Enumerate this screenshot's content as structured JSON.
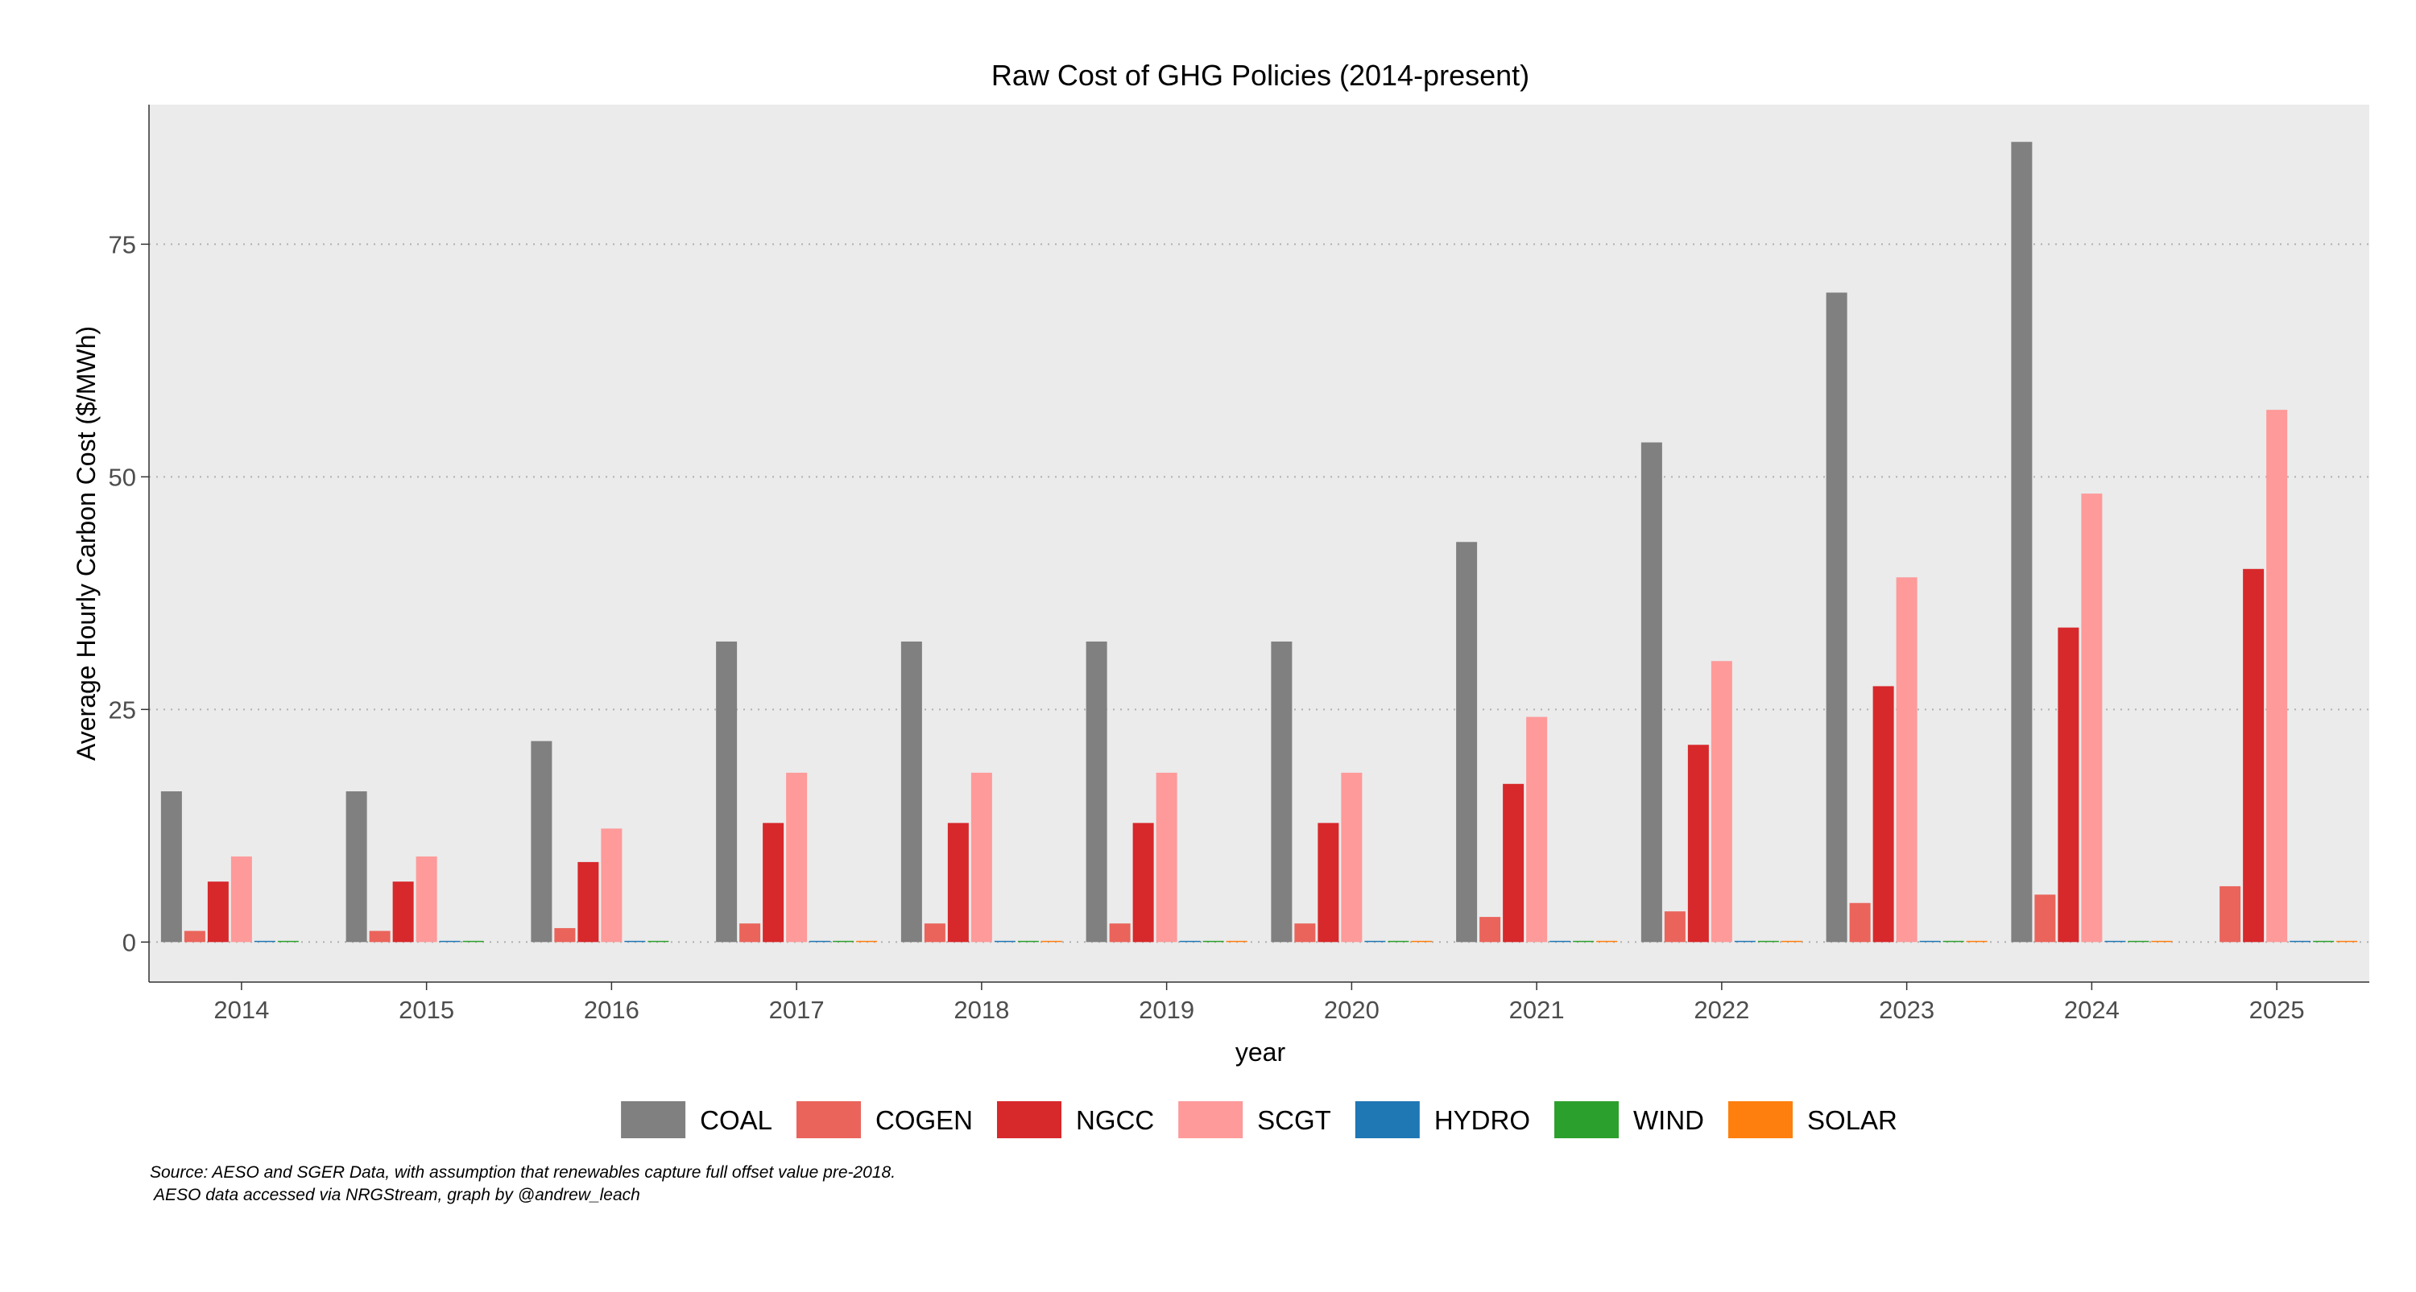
{
  "chart_data": {
    "type": "bar",
    "title": "Raw Cost of GHG Policies (2014-present)",
    "xlabel": "year",
    "ylabel": "Average Hourly Carbon Cost ($/MWh)",
    "ylim": [
      -4.3,
      90
    ],
    "yticks": [
      0,
      25,
      50,
      75
    ],
    "grid": "horizontal dotted",
    "legend_position": "bottom",
    "categories": [
      "2014",
      "2015",
      "2016",
      "2017",
      "2018",
      "2019",
      "2020",
      "2021",
      "2022",
      "2023",
      "2024",
      "2025"
    ],
    "series": [
      {
        "name": "COAL",
        "color": "#808080",
        "values": [
          16.2,
          16.2,
          21.6,
          32.3,
          32.3,
          32.3,
          32.3,
          43.0,
          53.7,
          69.8,
          86.0,
          null
        ]
      },
      {
        "name": "COGEN",
        "color": "#EA645B",
        "values": [
          1.2,
          1.2,
          1.5,
          2.0,
          2.0,
          2.0,
          2.0,
          2.7,
          3.3,
          4.2,
          5.1,
          6.0
        ]
      },
      {
        "name": "NGCC",
        "color": "#D7282B",
        "values": [
          6.5,
          6.5,
          8.6,
          12.8,
          12.8,
          12.8,
          12.8,
          17.0,
          21.2,
          27.5,
          33.8,
          40.1
        ]
      },
      {
        "name": "SCGT",
        "color": "#FE9A9A",
        "values": [
          9.2,
          9.2,
          12.2,
          18.2,
          18.2,
          18.2,
          18.2,
          24.2,
          30.2,
          39.2,
          48.2,
          57.2
        ]
      },
      {
        "name": "HYDRO",
        "color": "#1F77B4",
        "values": [
          0,
          0,
          0,
          0,
          0,
          0,
          0,
          0,
          0,
          0,
          0,
          0
        ]
      },
      {
        "name": "WIND",
        "color": "#2CA02C",
        "values": [
          0,
          0,
          0,
          0,
          0,
          0,
          0,
          0,
          0,
          0,
          0,
          0
        ]
      },
      {
        "name": "SOLAR",
        "color": "#FF7F0E",
        "values": [
          null,
          null,
          null,
          0,
          0,
          0,
          0,
          0,
          0,
          0,
          0,
          0
        ]
      }
    ]
  },
  "caption": {
    "line1": "Source: AESO and SGER Data, with assumption that renewables capture full offset value pre-2018.",
    "line2": " AESO data accessed via NRGStream, graph by @andrew_leach"
  },
  "colors": {
    "panel_background": "#EBEBEB",
    "gridline": "#B0B0B0",
    "axis_line": "#333333"
  }
}
